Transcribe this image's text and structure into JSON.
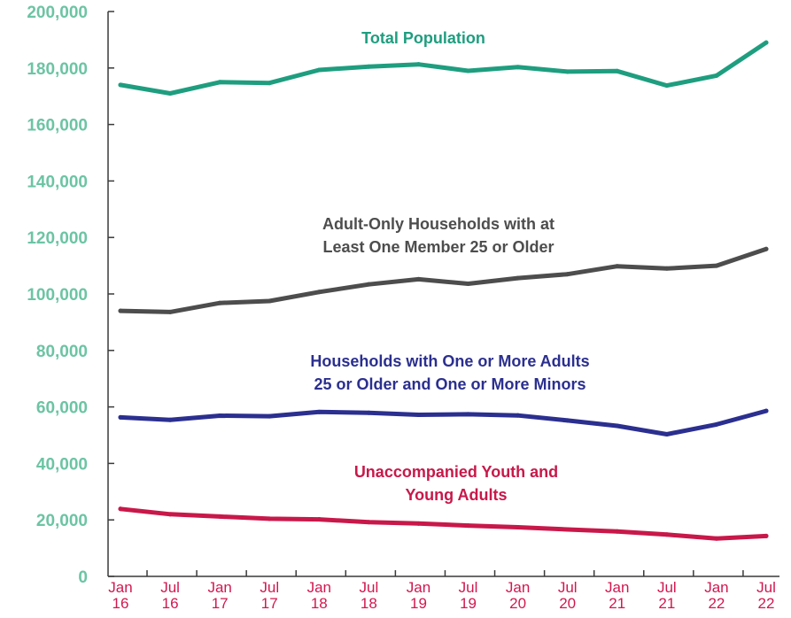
{
  "chart_data": {
    "type": "line",
    "x": [
      "Jan 16",
      "Jul 16",
      "Jan 17",
      "Jul 17",
      "Jan 18",
      "Jul 18",
      "Jan 19",
      "Jul 19",
      "Jan 20",
      "Jul 20",
      "Jan 21",
      "Jul 21",
      "Jan 22",
      "Jul 22"
    ],
    "x_tick_lines": [
      [
        "Jan",
        "16"
      ],
      [
        "Jul",
        "16"
      ],
      [
        "Jan",
        "17"
      ],
      [
        "Jul",
        "17"
      ],
      [
        "Jan",
        "18"
      ],
      [
        "Jul",
        "18"
      ],
      [
        "Jan",
        "19"
      ],
      [
        "Jul",
        "19"
      ],
      [
        "Jan",
        "20"
      ],
      [
        "Jul",
        "20"
      ],
      [
        "Jan",
        "21"
      ],
      [
        "Jul",
        "21"
      ],
      [
        "Jan",
        "22"
      ],
      [
        "Jul",
        "22"
      ]
    ],
    "ylim": [
      0,
      200000
    ],
    "y_ticks": [
      "0",
      "20,000",
      "40,000",
      "60,000",
      "80,000",
      "100,000",
      "120,000",
      "140,000",
      "160,000",
      "180,000",
      "200,000"
    ],
    "y_tick_values": [
      0,
      20000,
      40000,
      60000,
      80000,
      100000,
      120000,
      140000,
      160000,
      180000,
      200000
    ],
    "grid": false,
    "series": [
      {
        "name": "Total Population",
        "label_lines": [
          "Total Population"
        ],
        "color": "#1e9e7f",
        "values": [
          174000,
          171000,
          175000,
          174700,
          179300,
          180500,
          181300,
          179000,
          180300,
          178700,
          178900,
          173800,
          177300,
          189000
        ]
      },
      {
        "name": "Adult-Only Households with at Least One Member 25 or Older",
        "label_lines": [
          "Adult-Only Households with at",
          "Least One Member 25 or Older"
        ],
        "color": "#4d4d4d",
        "values": [
          94000,
          93600,
          96800,
          97500,
          100700,
          103400,
          105200,
          103600,
          105600,
          107000,
          109800,
          109000,
          110000,
          115900
        ]
      },
      {
        "name": "Households with One or More Adults 25 or Older and One or More Minors",
        "label_lines": [
          "Households with One or More Adults",
          "25 or Older and One or More Minors"
        ],
        "color": "#2b2f8f",
        "values": [
          56300,
          55400,
          56900,
          56700,
          58200,
          57900,
          57200,
          57400,
          57000,
          55200,
          53300,
          50300,
          53800,
          58600
        ]
      },
      {
        "name": "Unaccompanied Youth and Young Adults",
        "label_lines": [
          "Unaccompanied Youth and",
          "Young Adults"
        ],
        "color": "#c8184a",
        "values": [
          23900,
          22000,
          21200,
          20400,
          20200,
          19200,
          18700,
          18000,
          17400,
          16600,
          15900,
          14800,
          13400,
          14300
        ]
      }
    ]
  },
  "style": {
    "axis_color": "#3a3a3a",
    "ytick_color": "#6cc4a4",
    "xtick_color": "#d2174f"
  }
}
